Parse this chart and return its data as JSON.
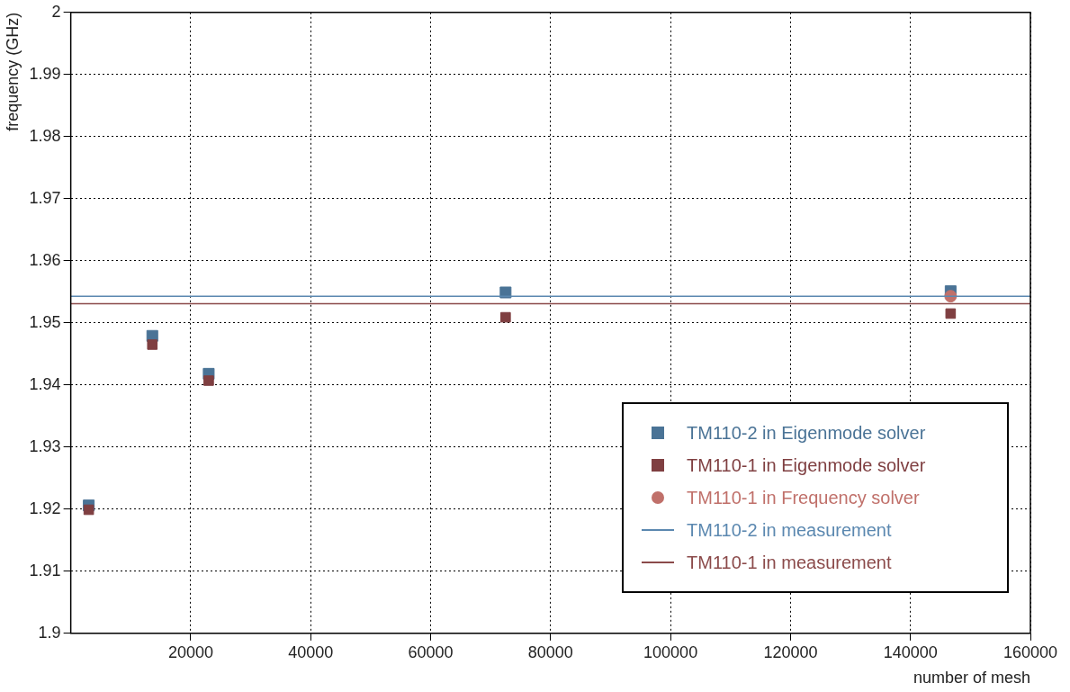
{
  "chart_data": {
    "type": "scatter",
    "xlabel": "number of mesh",
    "ylabel": "frequency (GHz)",
    "x": [
      3000,
      13600,
      23000,
      72500,
      146700
    ],
    "series": [
      {
        "name": "TM110-2 in Eigenmode solver",
        "color": "#4a7396",
        "marker": "square",
        "values": [
          1.9206,
          1.9479,
          1.9418,
          1.9549,
          1.9551
        ]
      },
      {
        "name": "TM110-1 in Eigenmode solver",
        "color": "#7f3f41",
        "marker": "square",
        "values": [
          1.9199,
          1.9465,
          1.9407,
          1.9509,
          1.9515
        ]
      },
      {
        "name": "TM110-1 in Frequency solver",
        "color": "#c0706a",
        "marker": "circle",
        "values": [
          null,
          null,
          null,
          null,
          1.9543
        ]
      }
    ],
    "ref_lines": [
      {
        "axis": "y",
        "value": 1.9543,
        "label": "TM110-2 in measurement",
        "color": "#5b88b0",
        "line_style": "solid"
      },
      {
        "axis": "y",
        "value": 1.9531,
        "label": "TM110-1 in measurement",
        "color": "#8b4a4a",
        "line_style": "solid"
      }
    ],
    "xlim": [
      0,
      160000
    ],
    "xticks": [
      20000,
      40000,
      60000,
      80000,
      100000,
      120000,
      140000,
      160000
    ],
    "ylim": [
      1.9,
      2
    ],
    "yticks": [
      1.9,
      1.91,
      1.92,
      1.93,
      1.94,
      1.95,
      1.96,
      1.97,
      1.98,
      1.99,
      2
    ],
    "grid": true,
    "legend": "bottom right"
  }
}
